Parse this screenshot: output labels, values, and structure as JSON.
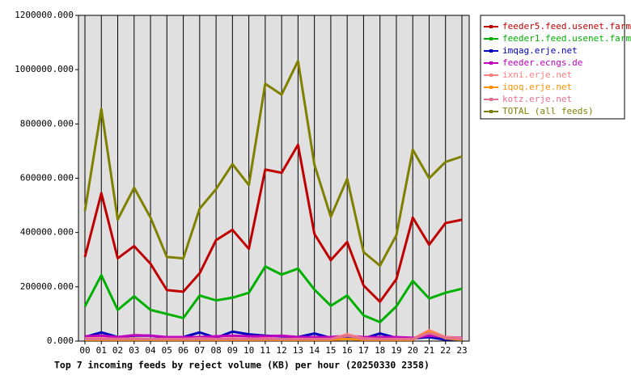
{
  "chart_data": {
    "type": "line",
    "title": "Top 7 incoming feeds by reject volume (KB) per hour (20250330 2358)",
    "categories": [
      "00",
      "01",
      "02",
      "03",
      "04",
      "05",
      "06",
      "07",
      "08",
      "09",
      "10",
      "11",
      "12",
      "13",
      "14",
      "15",
      "16",
      "17",
      "18",
      "19",
      "20",
      "21",
      "22",
      "23"
    ],
    "ylim": [
      0,
      1200000
    ],
    "yticks": [
      {
        "value": 0,
        "label": "0.000"
      },
      {
        "value": 200000,
        "label": "200000.000"
      },
      {
        "value": 400000,
        "label": "400000.000"
      },
      {
        "value": 600000,
        "label": "600000.000"
      },
      {
        "value": 800000,
        "label": "800000.000"
      },
      {
        "value": 1000000,
        "label": "1000000.000"
      },
      {
        "value": 1200000,
        "label": "1200000.000"
      }
    ],
    "grid": true,
    "legend": "outside-right",
    "series": [
      {
        "name": "feeder5.feed.usenet.farm",
        "color": "#c00000",
        "values": [
          310000,
          545000,
          305000,
          350000,
          285000,
          188000,
          182000,
          250000,
          372000,
          410000,
          340000,
          632000,
          620000,
          723000,
          395000,
          298000,
          365000,
          205000,
          145000,
          228000,
          455000,
          355000,
          435000,
          447000
        ]
      },
      {
        "name": "feeder1.feed.usenet.farm",
        "color": "#00b000",
        "values": [
          128000,
          243000,
          115000,
          165000,
          115000,
          100000,
          85000,
          168000,
          150000,
          160000,
          178000,
          275000,
          245000,
          267000,
          190000,
          130000,
          168000,
          95000,
          70000,
          128000,
          222000,
          157000,
          178000,
          193000
        ]
      },
      {
        "name": "imqag.erje.net",
        "color": "#0000c0",
        "values": [
          15000,
          32000,
          15000,
          20000,
          20000,
          12000,
          15000,
          32000,
          12000,
          35000,
          25000,
          20000,
          18000,
          15000,
          28000,
          12000,
          18000,
          10000,
          28000,
          12000,
          10000,
          15000,
          5000,
          8000
        ]
      },
      {
        "name": "feeder.ecngs.de",
        "color": "#c000c0",
        "values": [
          18000,
          20000,
          15000,
          22000,
          20000,
          15000,
          15000,
          15000,
          18000,
          20000,
          18000,
          18000,
          20000,
          15000,
          15000,
          15000,
          20000,
          15000,
          15000,
          15000,
          12000,
          20000,
          15000,
          12000
        ]
      },
      {
        "name": "ixni.erje.net",
        "color": "#ff8080",
        "values": [
          10000,
          10000,
          8000,
          10000,
          8000,
          8000,
          8000,
          10000,
          8000,
          10000,
          8000,
          10000,
          8000,
          8000,
          8000,
          8000,
          25000,
          10000,
          8000,
          8000,
          8000,
          40000,
          15000,
          10000
        ]
      },
      {
        "name": "iqoq.erje.net",
        "color": "#ff9000",
        "values": [
          5000,
          5000,
          5000,
          5000,
          5000,
          5000,
          5000,
          5000,
          5000,
          5000,
          5000,
          5000,
          5000,
          5000,
          5000,
          5000,
          8000,
          5000,
          5000,
          5000,
          5000,
          35000,
          10000,
          5000
        ]
      },
      {
        "name": "kotz.erje.net",
        "color": "#e07090",
        "values": [
          8000,
          8000,
          8000,
          8000,
          8000,
          8000,
          8000,
          8000,
          8000,
          8000,
          8000,
          8000,
          8000,
          8000,
          8000,
          8000,
          20000,
          8000,
          8000,
          8000,
          8000,
          30000,
          12000,
          8000
        ]
      },
      {
        "name": "TOTAL (all feeds)",
        "color": "#808000",
        "values": [
          480000,
          855000,
          448000,
          565000,
          455000,
          310000,
          305000,
          488000,
          560000,
          652000,
          575000,
          948000,
          908000,
          1032000,
          650000,
          458000,
          598000,
          328000,
          278000,
          390000,
          705000,
          600000,
          660000,
          680000
        ]
      }
    ]
  }
}
